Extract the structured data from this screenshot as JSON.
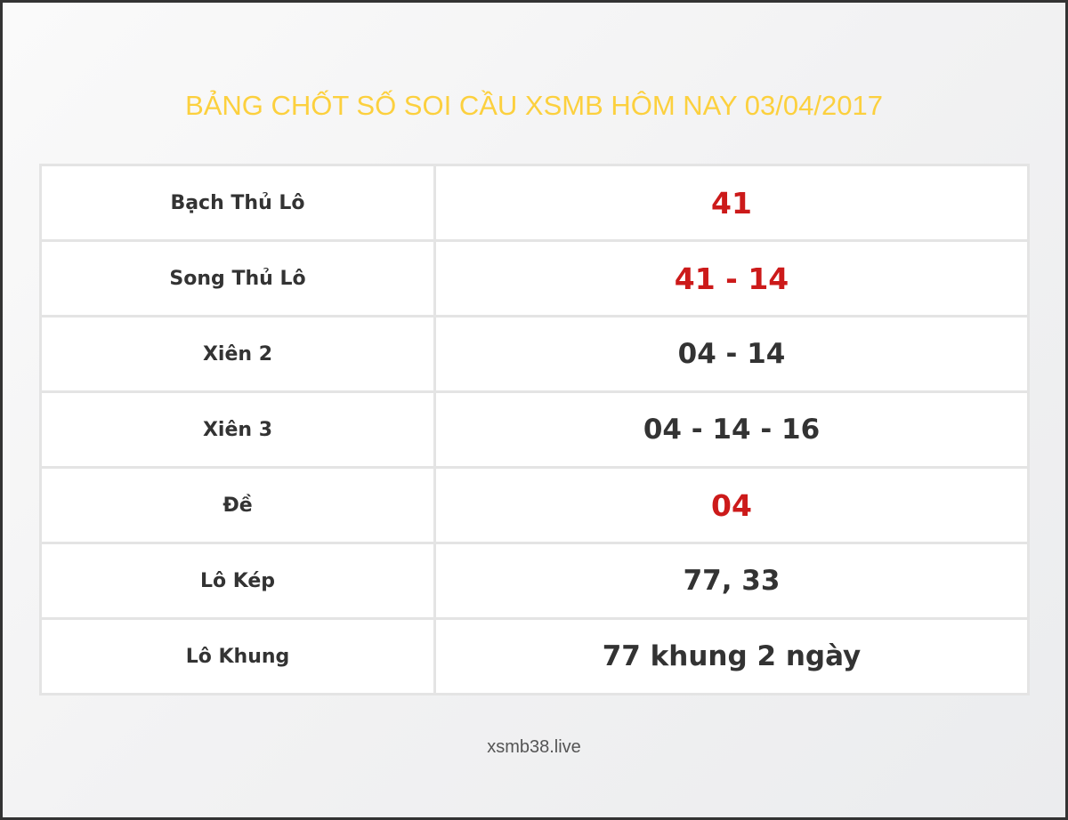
{
  "title": "BẢNG CHỐT SỐ SOI CẦU XSMB HÔM NAY 03/04/2017",
  "highlight_color": "#cc1a1a",
  "rows": [
    {
      "label": "Bạch Thủ Lô",
      "value": "41",
      "highlight": true
    },
    {
      "label": "Song Thủ Lô",
      "value": "41 - 14",
      "highlight": true
    },
    {
      "label": "Xiên 2",
      "value": "04 - 14",
      "highlight": false
    },
    {
      "label": "Xiên 3",
      "value": "04 - 14 - 16",
      "highlight": false
    },
    {
      "label": "Đề",
      "value": "04",
      "highlight": true
    },
    {
      "label": "Lô Kép",
      "value": "77, 33",
      "highlight": false
    },
    {
      "label": "Lô Khung",
      "value": "77 khung 2 ngày",
      "highlight": false
    }
  ],
  "footer": "xsmb38.live"
}
